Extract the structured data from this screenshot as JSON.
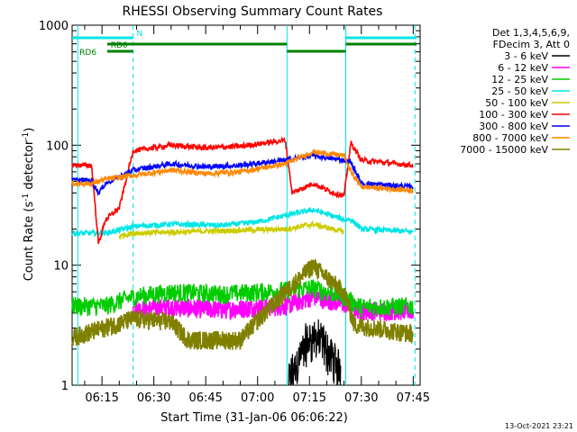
{
  "chart_data": {
    "type": "line",
    "title": "RHESSI Observing Summary Count Rates",
    "xlabel": "Start Time (31-Jan-06 06:06:22)",
    "ylabel": "Count Rate (s⁻¹ detector⁻¹)",
    "y_scale": "log",
    "ylim": [
      1,
      1000
    ],
    "xlim": [
      "06:06:22",
      "07:47:00"
    ],
    "x_ticks": [
      "06:15",
      "06:30",
      "06:45",
      "07:00",
      "07:15",
      "07:30",
      "07:45"
    ],
    "y_ticks": [
      "1",
      "10",
      "100",
      "1000"
    ],
    "legend_position": "right",
    "legend_header": [
      "Det 1,3,4,5,6,9,",
      "FDecim 3, Att 0"
    ],
    "timestamp": "13-Oct-2021 23:21",
    "colors": {
      "3-6": "#000000",
      "6-12": "#ff00ff",
      "12-25": "#00cc00",
      "25-50": "#00e5e5",
      "50-100": "#cccc00",
      "100-300": "#ff0000",
      "300-800": "#0000ff",
      "800-7000": "#ff8800",
      "7000-15000": "#808000",
      "flags": "#008000",
      "night": "#00e5e5"
    },
    "night_boundaries": [
      "06:08:00",
      "06:24:00",
      "07:25:30",
      "07:45:30"
    ],
    "saa_boundaries": [
      "07:08:30",
      "07:25:30"
    ],
    "flags": [
      {
        "label": "N",
        "color": "#00e5e5",
        "segments": [
          [
            "06:06:22",
            "06:24:00"
          ],
          [
            "07:25:30",
            "07:46:00"
          ]
        ]
      },
      {
        "label": "RD0",
        "color": "#008000",
        "segments": [
          [
            "06:16:30",
            "07:08:30"
          ],
          [
            "07:25:30",
            "07:46:00"
          ]
        ]
      },
      {
        "label": "RD6",
        "color": "#008000",
        "segments": [
          [
            "06:16:30",
            "06:24:00"
          ],
          [
            "07:08:30",
            "07:25:30"
          ]
        ]
      }
    ],
    "series": [
      {
        "name": "3 - 6 keV",
        "color": "#000000",
        "points": [
          [
            "07:09",
            1.2
          ],
          [
            "07:14",
            2.5
          ],
          [
            "07:16",
            2.8
          ],
          [
            "07:19",
            2.5
          ],
          [
            "07:24",
            1.5
          ]
        ]
      },
      {
        "name": "6 - 12 keV",
        "color": "#ff00ff",
        "points": [
          [
            "06:24",
            4.3
          ],
          [
            "06:35",
            4.5
          ],
          [
            "06:50",
            4.3
          ],
          [
            "07:08",
            4.6
          ],
          [
            "07:16",
            5.5
          ],
          [
            "07:25",
            4.8
          ],
          [
            "07:30",
            4.2
          ],
          [
            "07:45",
            4.2
          ]
        ]
      },
      {
        "name": "12 - 25 keV",
        "color": "#00cc00",
        "points": [
          [
            "06:06",
            4.6
          ],
          [
            "06:16",
            4.6
          ],
          [
            "06:24",
            5.5
          ],
          [
            "06:35",
            6.0
          ],
          [
            "06:50",
            5.8
          ],
          [
            "07:08",
            6.2
          ],
          [
            "07:16",
            6.5
          ],
          [
            "07:25",
            5.5
          ],
          [
            "07:30",
            4.5
          ],
          [
            "07:45",
            4.6
          ]
        ]
      },
      {
        "name": "25 - 50 keV",
        "color": "#00e5e5",
        "points": [
          [
            "06:06",
            18.5
          ],
          [
            "06:16",
            18.5
          ],
          [
            "06:24",
            21
          ],
          [
            "06:35",
            22
          ],
          [
            "06:50",
            21.5
          ],
          [
            "07:00",
            23
          ],
          [
            "07:08",
            26
          ],
          [
            "07:16",
            29
          ],
          [
            "07:25",
            24
          ],
          [
            "07:27",
            24
          ],
          [
            "07:30",
            20
          ],
          [
            "07:45",
            19
          ]
        ]
      },
      {
        "name": "50 - 100 keV",
        "color": "#cccc00",
        "points": [
          [
            "06:20",
            17.5
          ],
          [
            "06:24",
            18.5
          ],
          [
            "07:08",
            20
          ],
          [
            "07:16",
            22
          ],
          [
            "07:25",
            19
          ]
        ]
      },
      {
        "name": "100 - 300 keV",
        "color": "#ff0000",
        "points": [
          [
            "06:06",
            68
          ],
          [
            "06:12",
            68
          ],
          [
            "06:14",
            15
          ],
          [
            "06:16",
            24
          ],
          [
            "06:20",
            30
          ],
          [
            "06:24",
            90
          ],
          [
            "06:35",
            100
          ],
          [
            "06:45",
            95
          ],
          [
            "06:55",
            98
          ],
          [
            "07:08",
            110
          ],
          [
            "07:10",
            40
          ],
          [
            "07:16",
            48
          ],
          [
            "07:22",
            40
          ],
          [
            "07:25",
            38
          ],
          [
            "07:27",
            105
          ],
          [
            "07:30",
            75
          ],
          [
            "07:45",
            68
          ]
        ]
      },
      {
        "name": "300 - 800 keV",
        "color": "#0000ff",
        "points": [
          [
            "06:06",
            51
          ],
          [
            "06:12",
            51
          ],
          [
            "06:14",
            40
          ],
          [
            "06:16",
            48
          ],
          [
            "06:24",
            62
          ],
          [
            "06:35",
            70
          ],
          [
            "06:45",
            66
          ],
          [
            "06:55",
            68
          ],
          [
            "07:08",
            75
          ],
          [
            "07:16",
            82
          ],
          [
            "07:25",
            75
          ],
          [
            "07:27",
            72
          ],
          [
            "07:30",
            48
          ],
          [
            "07:45",
            45
          ]
        ]
      },
      {
        "name": "800 - 7000 keV",
        "color": "#ff8800",
        "points": [
          [
            "06:06",
            48
          ],
          [
            "06:12",
            48
          ],
          [
            "06:14",
            50
          ],
          [
            "06:16",
            52
          ],
          [
            "06:24",
            56
          ],
          [
            "06:35",
            62
          ],
          [
            "06:45",
            58
          ],
          [
            "06:55",
            60
          ],
          [
            "07:08",
            70
          ],
          [
            "07:16",
            88
          ],
          [
            "07:25",
            82
          ],
          [
            "07:27",
            60
          ],
          [
            "07:30",
            45
          ],
          [
            "07:45",
            42
          ]
        ]
      },
      {
        "name": "7000 - 15000 keV",
        "color": "#808000",
        "points": [
          [
            "06:06",
            2.5
          ],
          [
            "06:20",
            3.3
          ],
          [
            "06:24",
            3.6
          ],
          [
            "06:35",
            3.4
          ],
          [
            "06:40",
            2.4
          ],
          [
            "06:55",
            2.4
          ],
          [
            "07:00",
            3.5
          ],
          [
            "07:08",
            6.0
          ],
          [
            "07:16",
            10
          ],
          [
            "07:25",
            6.0
          ],
          [
            "07:28",
            3.2
          ],
          [
            "07:45",
            2.7
          ]
        ]
      }
    ]
  }
}
